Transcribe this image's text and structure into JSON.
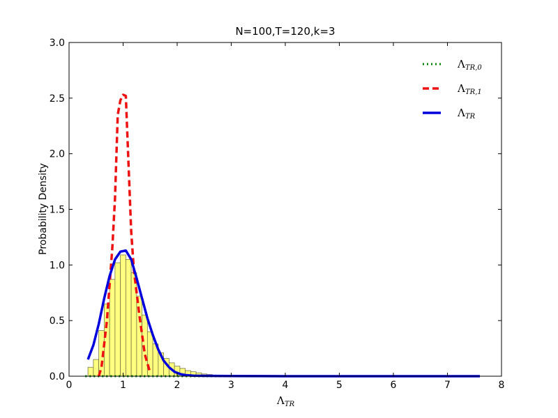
{
  "chart_data": {
    "type": "bar",
    "title": "N=100,T=120,k=3",
    "xlabel": {
      "symbol": "Λ",
      "subscript": "TR"
    },
    "ylabel": "Probability Density",
    "xlim": [
      0,
      8
    ],
    "ylim": [
      0,
      3.0
    ],
    "x_ticks": [
      "0",
      "1",
      "2",
      "3",
      "4",
      "5",
      "6",
      "7",
      "8"
    ],
    "y_ticks": [
      "0.0",
      "0.5",
      "1.0",
      "1.5",
      "2.0",
      "2.5",
      "3.0"
    ],
    "grid": false,
    "legend_position": "top-right",
    "histogram": {
      "bin_width": 0.1,
      "bins_start": 0.35,
      "values": [
        0.08,
        0.15,
        0.41,
        0.65,
        0.87,
        1.02,
        1.09,
        1.05,
        0.93,
        0.72,
        0.55,
        0.4,
        0.29,
        0.21,
        0.16,
        0.12,
        0.09,
        0.07,
        0.05,
        0.04,
        0.03,
        0.02,
        0.015,
        0.01,
        0.008,
        0.006,
        0.005,
        0.004,
        0.003,
        0.002
      ],
      "fill_color": "#ffff80",
      "edge_color": "#777744"
    },
    "series": [
      {
        "name": {
          "symbol": "Λ",
          "subscript": "TR,0"
        },
        "style": "dotted",
        "color": "#008000",
        "x": [
          0.3,
          1.0,
          2.0,
          3.0,
          4.0,
          5.0,
          6.0,
          7.6
        ],
        "y": [
          0,
          0,
          0,
          0,
          0,
          0,
          0,
          0
        ]
      },
      {
        "name": {
          "symbol": "Λ",
          "subscript": "TR,1"
        },
        "style": "dashed",
        "color": "#ee1111",
        "x": [
          0.55,
          0.6,
          0.7,
          0.8,
          0.85,
          0.9,
          0.95,
          1.0,
          1.05,
          1.1,
          1.15,
          1.2,
          1.3,
          1.4,
          1.5
        ],
        "y": [
          0.0,
          0.08,
          0.5,
          1.15,
          1.6,
          2.35,
          2.48,
          2.53,
          2.52,
          1.9,
          1.3,
          0.95,
          0.55,
          0.2,
          0.03
        ]
      },
      {
        "name": {
          "symbol": "Λ",
          "subscript": "TR"
        },
        "style": "solid",
        "color": "#0000dd",
        "x": [
          0.35,
          0.45,
          0.55,
          0.65,
          0.75,
          0.85,
          0.95,
          1.05,
          1.15,
          1.25,
          1.35,
          1.45,
          1.55,
          1.65,
          1.75,
          1.85,
          1.95,
          2.05,
          2.15,
          2.3,
          2.5,
          3.0,
          4.0,
          5.0,
          6.0,
          7.0,
          7.6
        ],
        "y": [
          0.15,
          0.28,
          0.47,
          0.7,
          0.9,
          1.05,
          1.12,
          1.13,
          1.05,
          0.88,
          0.7,
          0.52,
          0.37,
          0.24,
          0.14,
          0.08,
          0.04,
          0.02,
          0.01,
          0.005,
          0.003,
          0.001,
          0,
          0,
          0,
          0,
          0
        ]
      }
    ]
  }
}
